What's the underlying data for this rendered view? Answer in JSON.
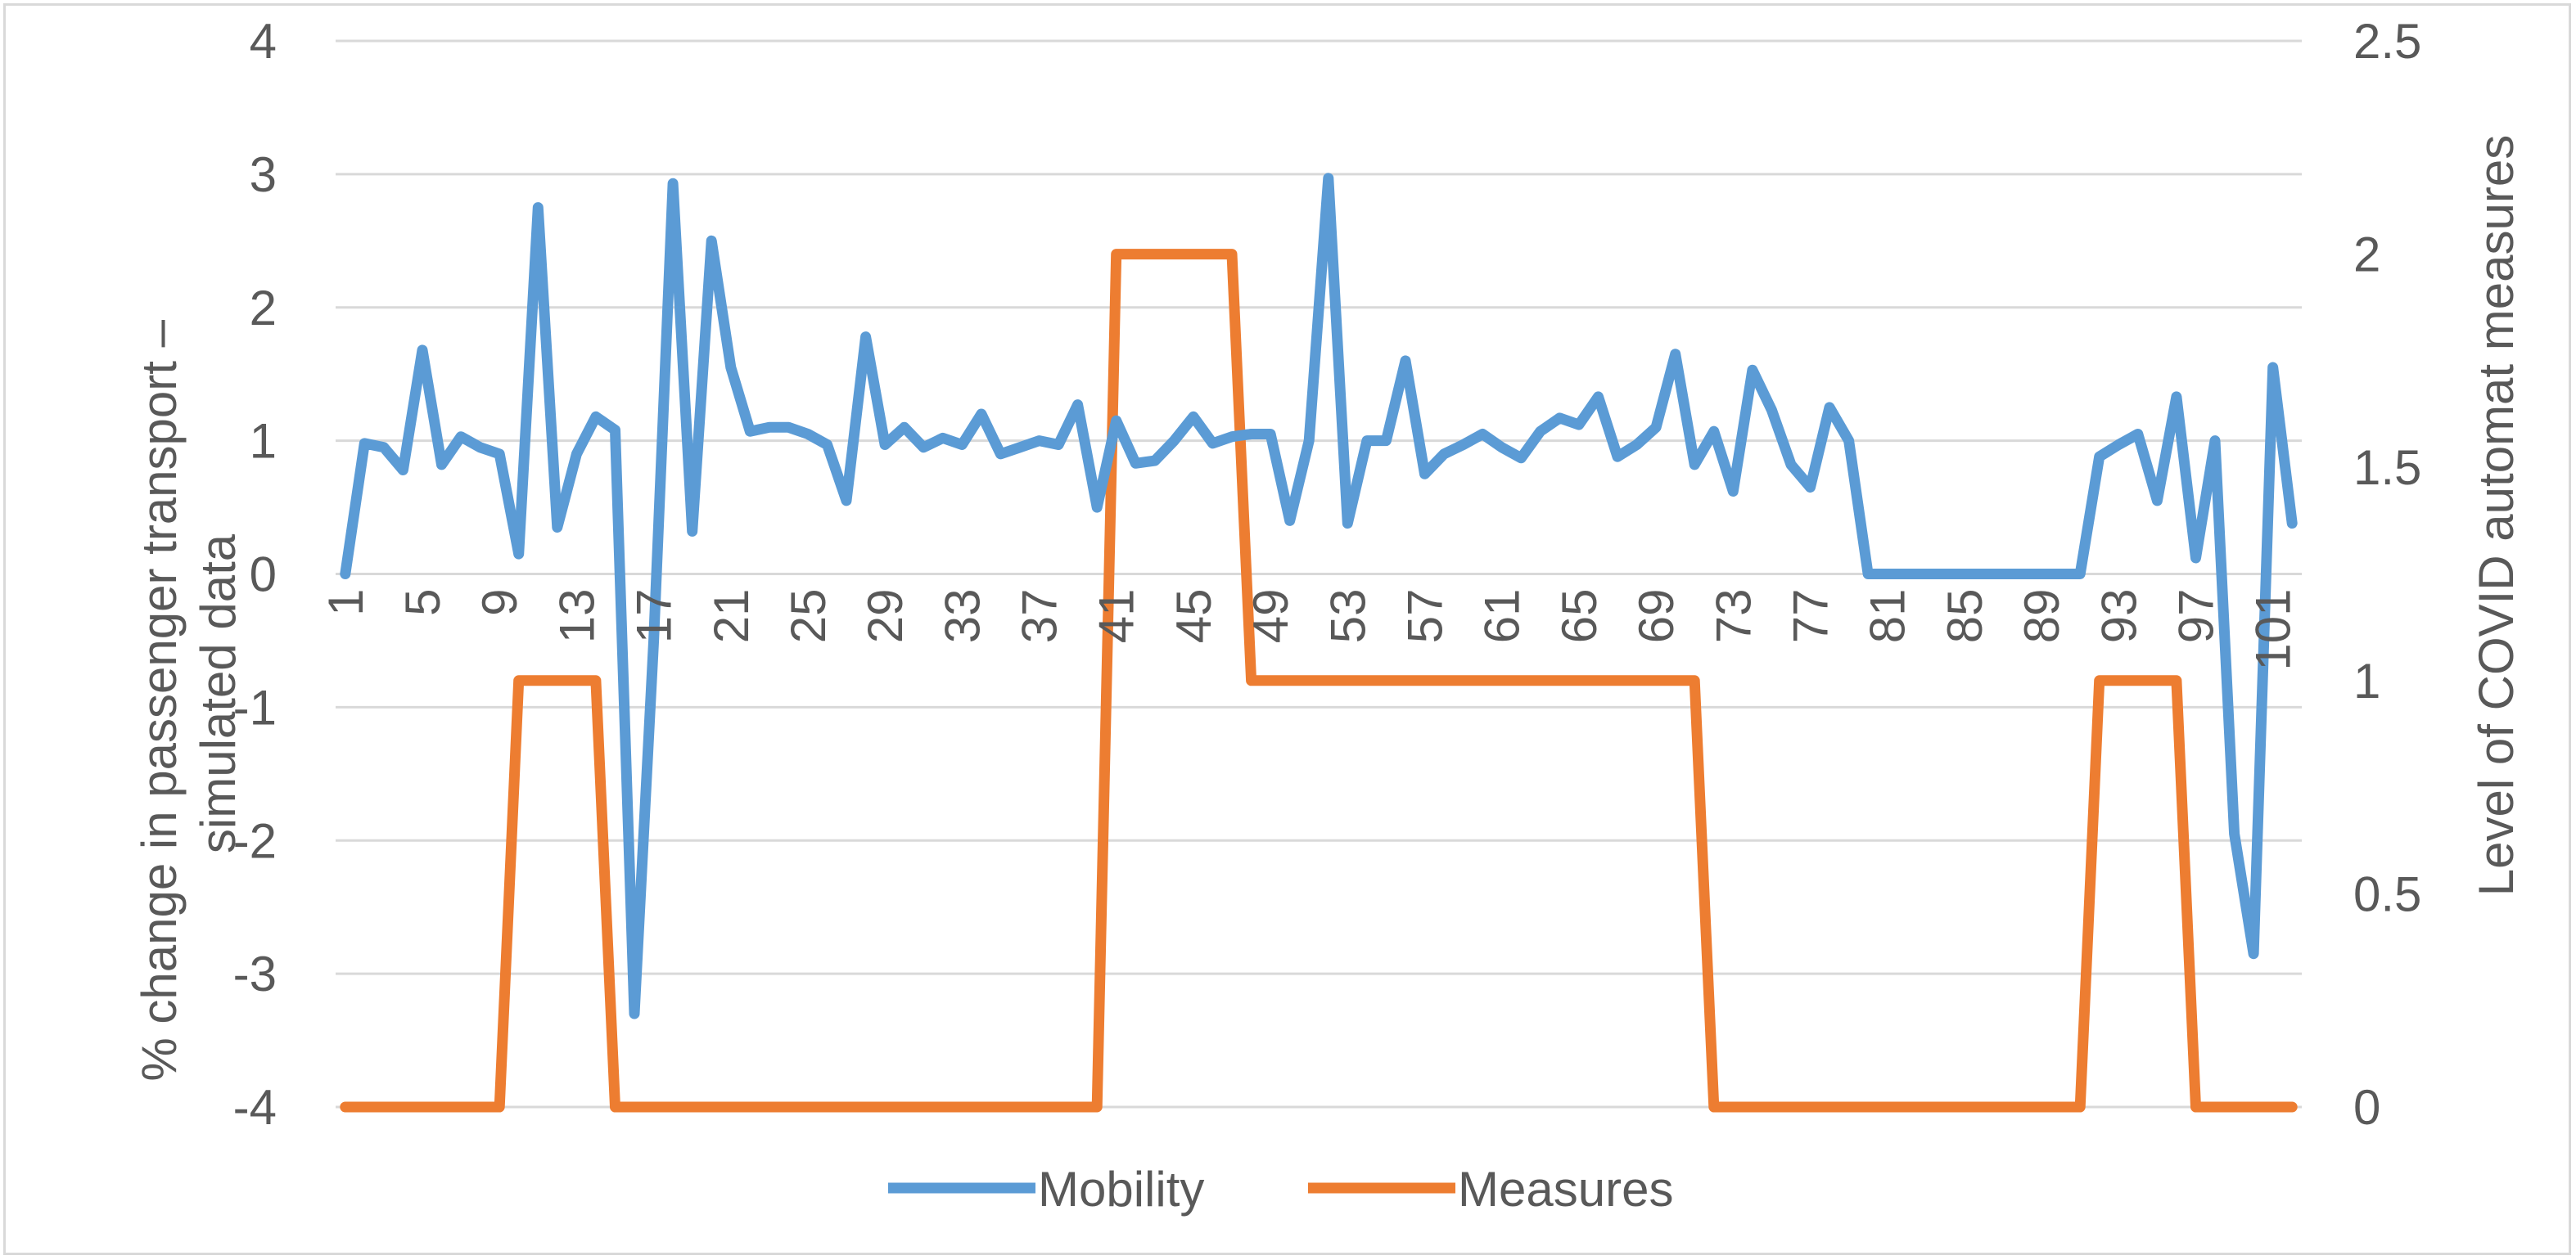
{
  "chart_data": {
    "type": "line",
    "title": "",
    "xlabel": "",
    "ylabel": "% change in passenger transport – simulated data",
    "y2label": "Level of COVID automat measures",
    "ylim": [
      -4,
      4
    ],
    "y2lim": [
      0,
      2.5
    ],
    "yticks": [
      "4",
      "3",
      "2",
      "1",
      "0",
      "-1",
      "-2",
      "-3",
      "-4"
    ],
    "y2ticks": [
      "2.5",
      "2",
      "1.5",
      "1",
      "0.5",
      "0"
    ],
    "xtick_labels": [
      "1",
      "5",
      "9",
      "13",
      "17",
      "21",
      "25",
      "29",
      "33",
      "37",
      "41",
      "45",
      "49",
      "53",
      "57",
      "61",
      "65",
      "69",
      "73",
      "77",
      "81",
      "85",
      "89",
      "93",
      "97",
      "101"
    ],
    "x": [
      1,
      2,
      3,
      4,
      5,
      6,
      7,
      8,
      9,
      10,
      11,
      12,
      13,
      14,
      15,
      16,
      17,
      18,
      19,
      20,
      21,
      22,
      23,
      24,
      25,
      26,
      27,
      28,
      29,
      30,
      31,
      32,
      33,
      34,
      35,
      36,
      37,
      38,
      39,
      40,
      41,
      42,
      43,
      44,
      45,
      46,
      47,
      48,
      49,
      50,
      51,
      52,
      53,
      54,
      55,
      56,
      57,
      58,
      59,
      60,
      61,
      62,
      63,
      64,
      65,
      66,
      67,
      68,
      69,
      70,
      71,
      72,
      73,
      74,
      75,
      76,
      77,
      78,
      79,
      80,
      81,
      82,
      83,
      84,
      85,
      86,
      87,
      88,
      89,
      90,
      91,
      92,
      93,
      94,
      95,
      96,
      97,
      98,
      99,
      100,
      101,
      102
    ],
    "grid": true,
    "legend_position": "bottom",
    "series": [
      {
        "name": "Mobility",
        "axis": "left",
        "color": "#5b9bd5",
        "values": [
          0,
          0.98,
          0.95,
          0.78,
          1.68,
          0.82,
          1.03,
          0.95,
          0.9,
          0.15,
          2.75,
          0.35,
          0.9,
          1.18,
          1.08,
          -3.3,
          -0.5,
          2.93,
          0.32,
          2.5,
          1.55,
          1.07,
          1.1,
          1.1,
          1.05,
          0.97,
          0.55,
          1.78,
          0.97,
          1.1,
          0.95,
          1.02,
          0.97,
          1.2,
          0.9,
          0.95,
          1.0,
          0.97,
          1.27,
          0.5,
          1.15,
          0.83,
          0.85,
          1.0,
          1.18,
          0.98,
          1.03,
          1.05,
          1.05,
          0.4,
          1.0,
          2.97,
          0.38,
          1.0,
          1.0,
          1.6,
          0.75,
          0.9,
          0.97,
          1.05,
          0.95,
          0.87,
          1.07,
          1.17,
          1.12,
          1.33,
          0.88,
          0.97,
          1.1,
          1.65,
          0.82,
          1.07,
          0.62,
          1.53,
          1.23,
          0.82,
          0.65,
          1.25,
          1.0,
          0,
          0,
          0,
          0,
          0,
          0,
          0,
          0,
          0,
          0,
          0,
          0,
          0.88,
          0.97,
          1.05,
          0.55,
          1.33,
          0.12,
          1.0,
          -1.95,
          -2.85,
          1.55,
          0.38
        ]
      },
      {
        "name": "Measures",
        "axis": "right",
        "color": "#ed7d31",
        "values": [
          0,
          0,
          0,
          0,
          0,
          0,
          0,
          0,
          0,
          1,
          1,
          1,
          1,
          1,
          0,
          0,
          0,
          0,
          0,
          0,
          0,
          0,
          0,
          0,
          0,
          0,
          0,
          0,
          0,
          0,
          0,
          0,
          0,
          0,
          0,
          0,
          0,
          0,
          0,
          0,
          2,
          2,
          2,
          2,
          2,
          2,
          2,
          1,
          1,
          1,
          1,
          1,
          1,
          1,
          1,
          1,
          1,
          1,
          1,
          1,
          1,
          1,
          1,
          1,
          1,
          1,
          1,
          1,
          1,
          1,
          1,
          0,
          0,
          0,
          0,
          0,
          0,
          0,
          0,
          0,
          0,
          0,
          0,
          0,
          0,
          0,
          0,
          0,
          0,
          0,
          0,
          1,
          1,
          1,
          1,
          1,
          0,
          0,
          0,
          0,
          0,
          0
        ]
      }
    ]
  }
}
